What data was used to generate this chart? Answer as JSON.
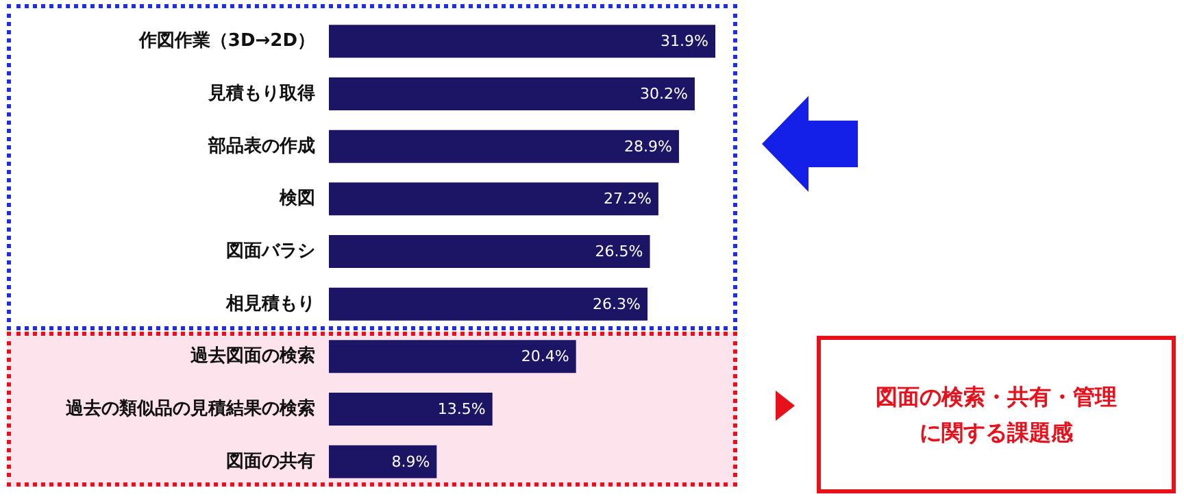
{
  "chart_data": {
    "type": "bar",
    "orientation": "horizontal",
    "bands": [
      {
        "axis": "y",
        "from": "過去図面の検索",
        "to": "図面の共有",
        "color": "#fde4ec"
      }
    ],
    "categories": [
      "作図作業（3D→2D）",
      "見積もり取得",
      "部品表の作成",
      "検図",
      "図面バラシ",
      "相見積もり",
      "過去図面の検索",
      "過去の類似品の見積結果の検索",
      "図面の共有"
    ],
    "values": [
      31.9,
      30.2,
      28.9,
      27.2,
      26.5,
      26.3,
      20.4,
      13.5,
      8.9
    ],
    "value_labels": [
      "31.9%",
      "30.2%",
      "28.9%",
      "27.2%",
      "26.5%",
      "26.3%",
      "20.4%",
      "13.5%",
      "8.9%"
    ],
    "color": "#1c1464",
    "annotations": [
      "図面の検索・共有・管理に関する課題感"
    ]
  }
}
